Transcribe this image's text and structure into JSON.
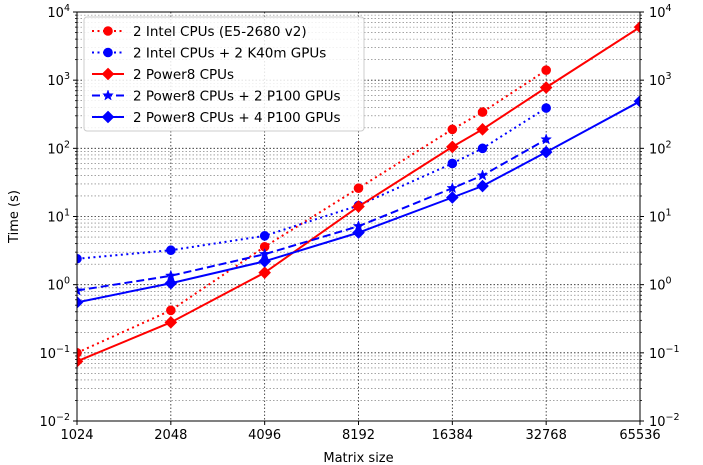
{
  "chart_data": {
    "type": "line",
    "title": "",
    "xlabel": "Matrix size",
    "ylabel": "Time (s)",
    "x_scale": "log2",
    "y_scale": "log10",
    "xlim": [
      1024,
      65536
    ],
    "ylim": [
      0.01,
      10000
    ],
    "x_ticks": [
      1024,
      2048,
      4096,
      8192,
      16384,
      32768,
      65536
    ],
    "x_tick_labels": [
      "1024",
      "2048",
      "4096",
      "8192",
      "16384",
      "32768",
      "65536"
    ],
    "y_ticks": [
      0.01,
      0.1,
      1,
      10,
      100,
      1000,
      10000
    ],
    "y_tick_labels": [
      {
        "base": "10",
        "exp": "−2"
      },
      {
        "base": "10",
        "exp": "−1"
      },
      {
        "base": "10",
        "exp": "0"
      },
      {
        "base": "10",
        "exp": "1"
      },
      {
        "base": "10",
        "exp": "2"
      },
      {
        "base": "10",
        "exp": "3"
      },
      {
        "base": "10",
        "exp": "4"
      }
    ],
    "right_axis_labels": true,
    "grid": "major and minor (dotted)",
    "legend_position": "top-left",
    "series": [
      {
        "name": "2 Intel CPUs (E5-2680 v2)",
        "color": "#ff0000",
        "linestyle": "dotted",
        "marker": "circle",
        "x": [
          1024,
          2048,
          4096,
          8192,
          16384,
          20480,
          32768
        ],
        "y": [
          0.1,
          0.42,
          3.6,
          26,
          190,
          340,
          1400
        ]
      },
      {
        "name": "2 Intel CPUs + 2 K40m GPUs",
        "color": "#0000ff",
        "linestyle": "dotted",
        "marker": "circle",
        "x": [
          1024,
          2048,
          4096,
          8192,
          16384,
          20480,
          32768
        ],
        "y": [
          2.4,
          3.2,
          5.2,
          14.5,
          60,
          100,
          390
        ]
      },
      {
        "name": "2 Power8 CPUs",
        "color": "#ff0000",
        "linestyle": "solid",
        "marker": "diamond",
        "x": [
          1024,
          2048,
          4096,
          8192,
          16384,
          20480,
          32768,
          65536
        ],
        "y": [
          0.075,
          0.28,
          1.5,
          14,
          105,
          190,
          780,
          6000
        ]
      },
      {
        "name": "2 Power8 CPUs + 2 P100 GPUs",
        "color": "#0000ff",
        "linestyle": "dashed",
        "marker": "star",
        "x": [
          1024,
          2048,
          4096,
          8192,
          16384,
          20480,
          32768
        ],
        "y": [
          0.82,
          1.35,
          2.8,
          7.2,
          26,
          40,
          135
        ]
      },
      {
        "name": "2 Power8 CPUs + 4 P100 GPUs",
        "color": "#0000ff",
        "linestyle": "solid",
        "marker": "diamond",
        "x": [
          1024,
          2048,
          4096,
          8192,
          16384,
          20480,
          32768,
          65536
        ],
        "y": [
          0.55,
          1.05,
          2.2,
          5.8,
          19,
          28,
          88,
          490
        ]
      }
    ]
  }
}
